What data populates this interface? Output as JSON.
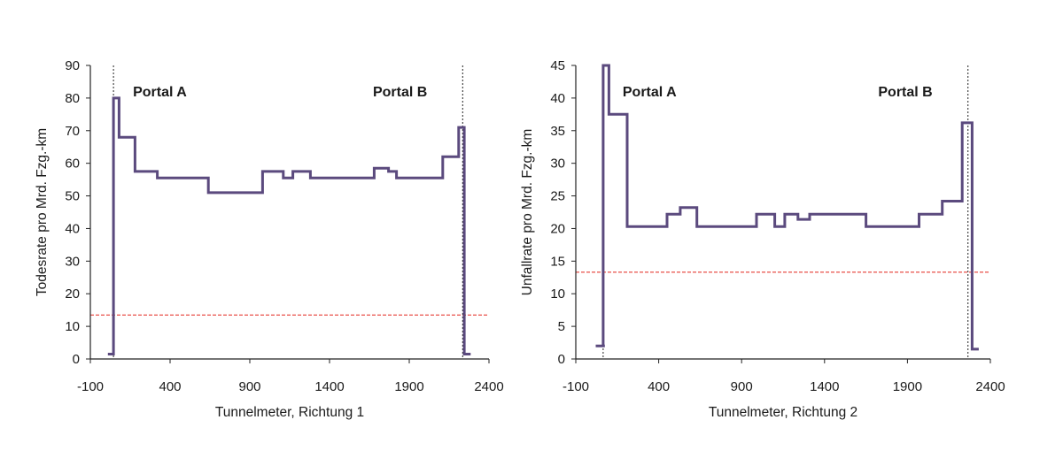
{
  "colors": {
    "series": "#5b4a7e",
    "reference": "#e3241b",
    "portal_line": "#222222",
    "axis": "#222222"
  },
  "chart_data": [
    {
      "type": "line",
      "step": "post",
      "xlabel": "Tunnelmeter, Richtung 1",
      "ylabel": "Todesrate pro Mrd. Fzg.-km",
      "xlim": [
        -100,
        2400
      ],
      "ylim": [
        0,
        90
      ],
      "xticks": [
        "-100",
        "400",
        "900",
        "1400",
        "1900",
        "2400"
      ],
      "yticks": [
        "0",
        "10",
        "20",
        "30",
        "40",
        "50",
        "60",
        "70",
        "80",
        "90"
      ],
      "grid": false,
      "annotations": [
        "Portal A",
        "Portal B"
      ],
      "portals": [
        45,
        2235
      ],
      "reference_line": 13.5,
      "series": [
        {
          "x": [
            10,
            45,
            45,
            80,
            80,
            180,
            180,
            320,
            320,
            640,
            640,
            980,
            980,
            1110,
            1110,
            1170,
            1170,
            1280,
            1280,
            1680,
            1680,
            1770,
            1770,
            1820,
            1820,
            2110,
            2110,
            2210,
            2210,
            2245,
            2245,
            2285
          ],
          "y": [
            1.5,
            1.5,
            80,
            80,
            68,
            68,
            57.5,
            57.5,
            55.5,
            55.5,
            51,
            51,
            57.5,
            57.5,
            55.5,
            55.5,
            57.5,
            57.5,
            55.5,
            55.5,
            58.5,
            58.5,
            57.5,
            57.5,
            55.5,
            55.5,
            62,
            62,
            71,
            71,
            1.5,
            1.5
          ]
        }
      ]
    },
    {
      "type": "line",
      "step": "post",
      "xlabel": "Tunnelmeter, Richtung 2",
      "ylabel": "Unfallrate pro Mrd. Fzg.-km",
      "xlim": [
        -100,
        2400
      ],
      "ylim": [
        0,
        45
      ],
      "xticks": [
        "-100",
        "400",
        "900",
        "1400",
        "1900",
        "2400"
      ],
      "yticks": [
        "0",
        "5",
        "10",
        "15",
        "20",
        "25",
        "30",
        "35",
        "40",
        "45"
      ],
      "grid": false,
      "annotations": [
        "Portal A",
        "Portal B"
      ],
      "portals": [
        65,
        2265
      ],
      "reference_line": 13.3,
      "series": [
        {
          "x": [
            20,
            75,
            75,
            65,
            65,
            100,
            100,
            210,
            210,
            450,
            450,
            530,
            530,
            630,
            630,
            990,
            990,
            1100,
            1100,
            1160,
            1160,
            1240,
            1240,
            1310,
            1310,
            1650,
            1650,
            1970,
            1970,
            2110,
            2110,
            2230,
            2230,
            2290,
            2290,
            2330
          ],
          "y": [
            2,
            2,
            2,
            2,
            45,
            45,
            37.5,
            37.5,
            20.3,
            20.3,
            22.2,
            22.2,
            23.2,
            23.2,
            20.3,
            20.3,
            22.2,
            22.2,
            20.3,
            20.3,
            22.2,
            22.2,
            21.4,
            21.4,
            22.2,
            22.2,
            20.3,
            20.3,
            22.2,
            22.2,
            24.2,
            24.2,
            36.2,
            36.2,
            1.5,
            1.5
          ]
        }
      ]
    }
  ]
}
